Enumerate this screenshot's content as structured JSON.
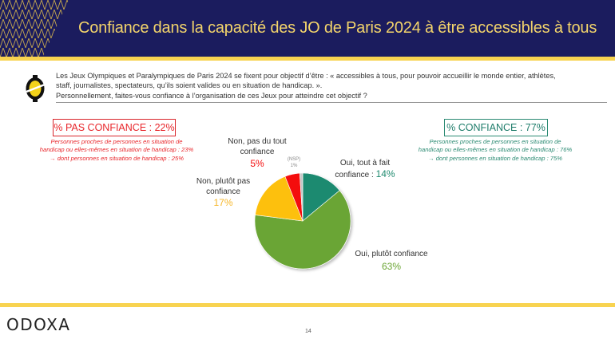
{
  "header": {
    "title": "Confiance dans la capacité des JO de Paris 2024 à être accessibles à tous"
  },
  "intro": {
    "line1": "Les Jeux Olympiques et Paralympiques de Paris 2024 se fixent pour objectif d’être : « accessibles à tous, pour pouvoir accueillir le monde entier, athlètes,",
    "line2": "staff, journalistes, spectateurs, qu’ils soient valides ou en situation de handicap. ».",
    "line3": "Personnellement, faites-vous confiance à l’organisation de ces Jeux pour atteindre cet objectif ?"
  },
  "summary": {
    "negative": {
      "label": "% PAS CONFIANCE : 22%",
      "line1": "Personnes proches de personnes en situation de",
      "line2": "handicap ou elles-mêmes en situation de handicap : 23%",
      "line3": "→ dont personnes en situation de handicap : 25%",
      "color": "#e8262b"
    },
    "positive": {
      "label": "% CONFIANCE : 77%",
      "line1": "Personnes proches de personnes en situation de",
      "line2": "handicap ou elles-mêmes en situation de handicap : 76%",
      "line3": "→ dont personnes en situation de handicap : 75%",
      "color": "#1e7c6a"
    }
  },
  "chart_data": {
    "type": "pie",
    "title": "Confiance dans la capacité des JO de Paris 2024 à être accessibles à tous",
    "slices": [
      {
        "label": "Oui, tout à fait confiance",
        "value": 14,
        "value_label": "14%",
        "color": "#1f8a6f"
      },
      {
        "label": "Oui, plutôt confiance",
        "value": 63,
        "value_label": "63%",
        "color": "#6ba534"
      },
      {
        "label": "Non, plutôt pas confiance",
        "value": 17,
        "value_label": "17%",
        "color": "#fdc010"
      },
      {
        "label": "Non, pas du tout confiance",
        "value": 5,
        "value_label": "5%",
        "color": "#f40d0d"
      },
      {
        "label": "(NSP)",
        "value": 1,
        "value_label": "1%",
        "color": "#c7c7c7"
      }
    ],
    "start": "12 o'clock",
    "direction": "clockwise"
  },
  "labels": {
    "oui_tout": {
      "line1": "Oui, tout à fait",
      "line2": "confiance : ",
      "pct": "14%"
    },
    "oui_plutot": {
      "line1": "Oui, plutôt confiance",
      "pct": "63%"
    },
    "non_plutot": {
      "line1": "Non, plutôt pas",
      "line2": "confiance",
      "pct": "17%"
    },
    "non_pas": {
      "line1": "Non, pas du tout",
      "line2": "confiance",
      "pct": "5%"
    },
    "nsp": {
      "line1": "(NSP)",
      "pct": "1%"
    }
  },
  "footer": {
    "logo": "ODOXA",
    "page": "14"
  }
}
